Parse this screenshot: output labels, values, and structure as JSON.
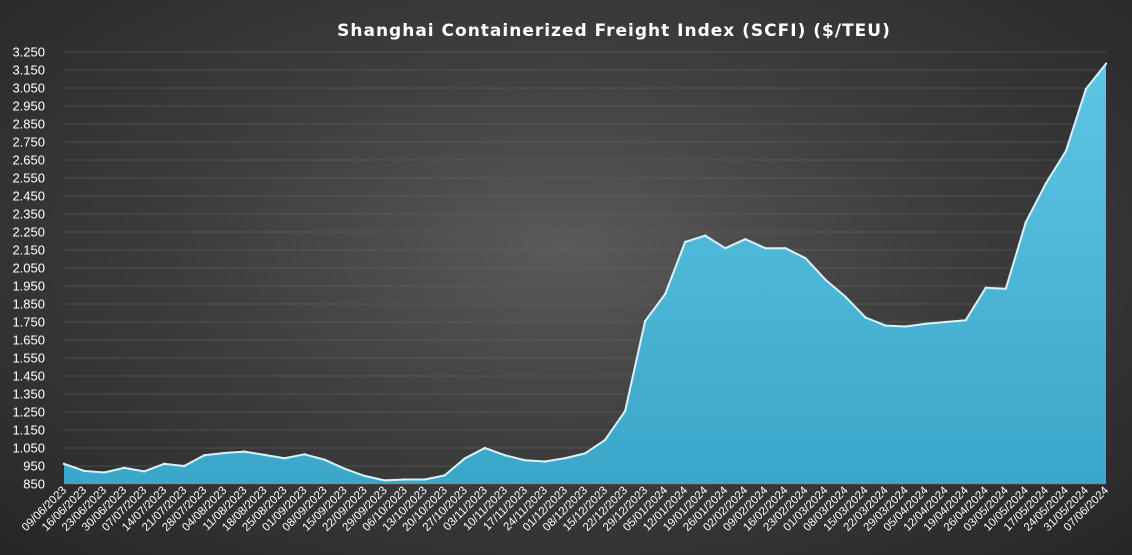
{
  "chart_data": {
    "type": "area",
    "title": "Shanghai  Containerized  Freight  Index  (SCFI)  ($/TEU)",
    "xlabel": "",
    "ylabel": "",
    "ylim": [
      850,
      3250
    ],
    "yticks": [
      "3.250",
      "3.150",
      "3.050",
      "2.950",
      "2.850",
      "2.750",
      "2.650",
      "2.550",
      "2.450",
      "2.350",
      "2.250",
      "2.150",
      "2.050",
      "1.950",
      "1.850",
      "1.750",
      "1.650",
      "1.550",
      "1.450",
      "1.350",
      "1.250",
      "1.150",
      "1.050",
      "950",
      "850"
    ],
    "grid": true,
    "legend": "none",
    "colors": {
      "fill_top": "#5ec6e4",
      "fill_bottom": "#3aa6c9",
      "line": "#d6f3ff"
    },
    "x": [
      "09/06/2023",
      "16/06/2023",
      "23/06/2023",
      "30/06/2023",
      "07/07/2023",
      "14/07/2023",
      "21/07/2023",
      "28/07/2023",
      "04/08/2023",
      "11/08/2023",
      "18/08/2023",
      "25/08/2023",
      "01/09/2023",
      "08/09/2023",
      "15/09/2023",
      "22/09/2023",
      "29/09/2023",
      "06/10/2023",
      "13/10/2023",
      "20/10/2023",
      "27/10/2023",
      "03/11/2023",
      "10/11/2023",
      "17/11/2023",
      "24/11/2023",
      "01/12/2023",
      "08/12/2023",
      "15/12/2023",
      "22/12/2023",
      "29/12/2023",
      "05/01/2024",
      "12/01/2024",
      "19/01/2024",
      "26/01/2024",
      "02/02/2024",
      "09/02/2024",
      "16/02/2024",
      "23/02/2024",
      "01/03/2024",
      "08/03/2024",
      "15/03/2024",
      "22/03/2024",
      "29/03/2024",
      "05/04/2024",
      "12/04/2024",
      "19/04/2024",
      "26/04/2024",
      "03/05/2024",
      "10/05/2024",
      "17/05/2024",
      "24/05/2024",
      "31/05/2024",
      "07/06/2024"
    ],
    "series": [
      {
        "values": [
          962,
          923,
          914,
          940,
          920,
          962,
          950,
          1010,
          1022,
          1030,
          1012,
          993,
          1015,
          985,
          935,
          895,
          870,
          875,
          875,
          898,
          992,
          1050,
          1010,
          982,
          975,
          993,
          1020,
          1095,
          1255,
          1755,
          1905,
          2195,
          2230,
          2160,
          2210,
          2160,
          2160,
          2105,
          1985,
          1890,
          1775,
          1730,
          1725,
          1740,
          1750,
          1760,
          1940,
          1935,
          2305,
          2520,
          2700,
          3045,
          3185
        ]
      }
    ]
  }
}
